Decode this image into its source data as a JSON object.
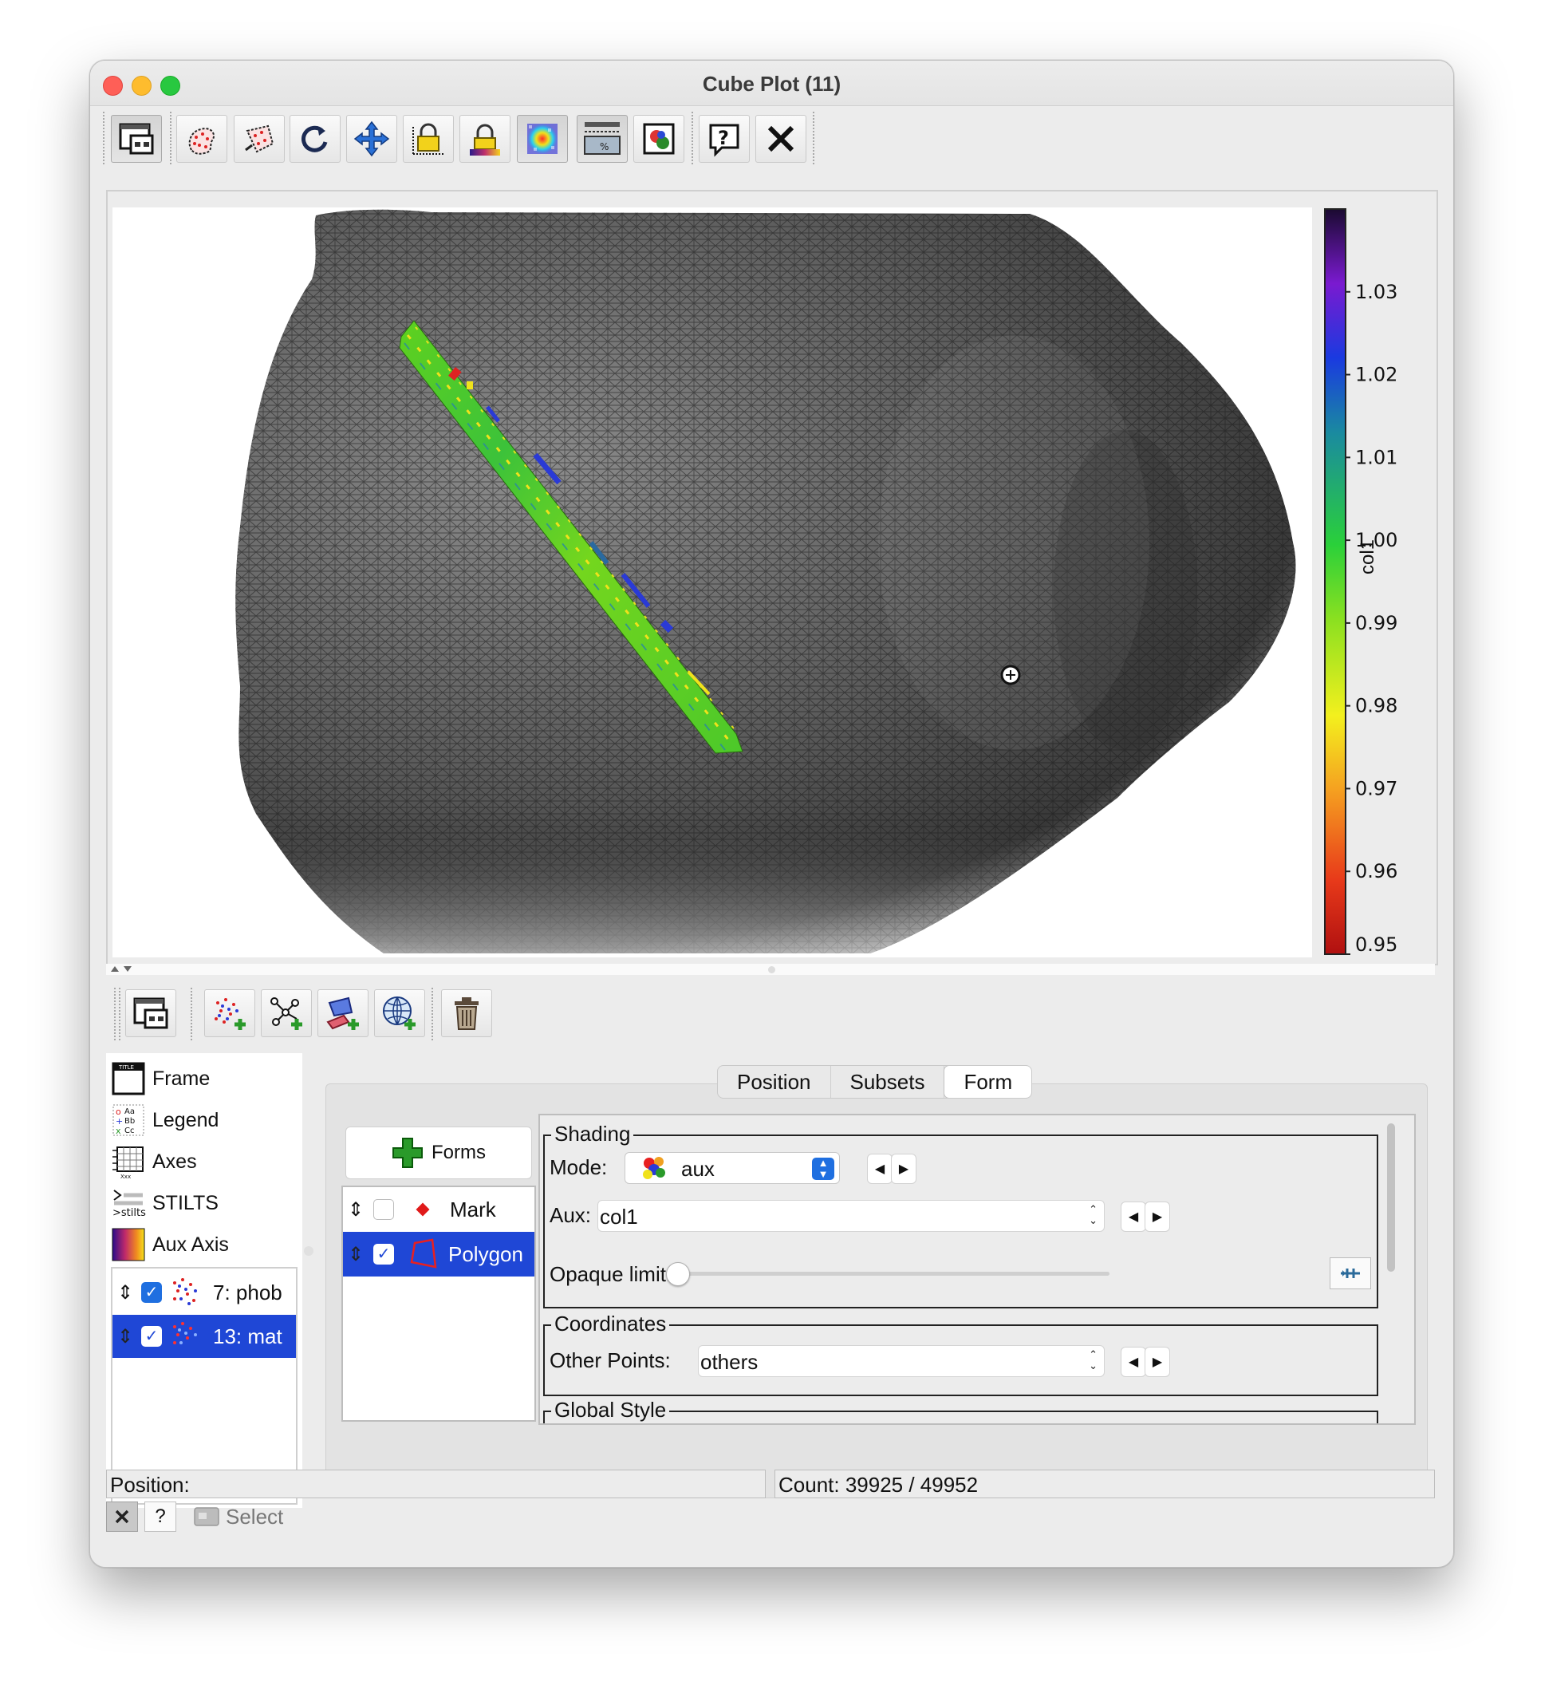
{
  "window": {
    "title": "Cube Plot (11)"
  },
  "toolbar": {
    "icons": [
      "plot-window-icon",
      "blob-subset-icon",
      "polygon-subset-icon",
      "replot-icon",
      "navigation-icon",
      "lock-axes-icon",
      "lock-aux-icon",
      "sketch-icon",
      "export-icon",
      "image-export-icon",
      "help-icon",
      "close-icon"
    ]
  },
  "colorbar": {
    "label": "col1",
    "ticks": [
      "1.03",
      "1.02",
      "1.01",
      "1.00",
      "0.99",
      "0.98",
      "0.97",
      "0.96",
      "0.95"
    ],
    "range": [
      0.95,
      1.04
    ]
  },
  "layer_toolbar": {
    "icons": [
      "float-controls-icon",
      "add-position-layer-icon",
      "add-pair-layer-icon",
      "add-area-layer-icon",
      "add-sky-layer-icon",
      "delete-layer-icon"
    ]
  },
  "controls": [
    {
      "label": "Frame",
      "icon": "frame-icon"
    },
    {
      "label": "Legend",
      "icon": "legend-icon"
    },
    {
      "label": "Axes",
      "icon": "axes-icon"
    },
    {
      "label": "STILTS",
      "icon": "stilts-icon"
    },
    {
      "label": "Aux Axis",
      "icon": "aux-axis-icon"
    }
  ],
  "layers": [
    {
      "label": "7: phob",
      "checked": true,
      "selected": false
    },
    {
      "label": "13: mat",
      "checked": true,
      "selected": true
    }
  ],
  "tabs": {
    "position": "Position",
    "subsets": "Subsets",
    "form": "Form"
  },
  "forms": {
    "add_label": "Forms",
    "items": [
      {
        "label": "Mark",
        "checked": false,
        "selected": false
      },
      {
        "label": "Polygon",
        "checked": true,
        "selected": true
      }
    ]
  },
  "shading": {
    "legend": "Shading",
    "mode_label": "Mode:",
    "mode_value": "aux",
    "aux_label": "Aux:",
    "aux_value": "col1",
    "opaque_label": "Opaque limit:"
  },
  "coordinates": {
    "legend": "Coordinates",
    "other_label": "Other Points:",
    "other_value": "others"
  },
  "global_style": {
    "legend": "Global Style"
  },
  "status": {
    "position_label": "Position:",
    "count": "Count: 39925 / 49952",
    "select_label": "Select",
    "help_label": "?"
  },
  "colors": {
    "selection": "#1f47d6",
    "background": "#ececec"
  }
}
